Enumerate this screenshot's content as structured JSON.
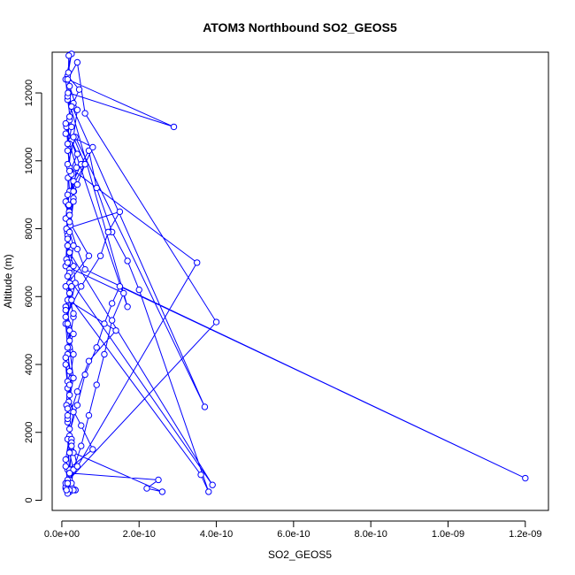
{
  "chart_data": {
    "type": "line",
    "title": "ATOM3 Northbound SO2_GEOS5",
    "xlabel": "SO2_GEOS5",
    "ylabel": "Altitude (m)",
    "xlim": [
      -2.5e-11,
      1.26e-09
    ],
    "ylim": [
      -300,
      13200
    ],
    "xticks": [
      0,
      2e-10,
      4e-10,
      6e-10,
      8e-10,
      1e-09,
      1.2e-09
    ],
    "xtick_labels": [
      "0.0e+00",
      "2.0e-10",
      "4.0e-10",
      "6.0e-10",
      "8.0e-10",
      "1.0e-09",
      "1.2e-09"
    ],
    "yticks": [
      0,
      2000,
      4000,
      6000,
      8000,
      10000,
      12000
    ],
    "ytick_labels": [
      "0",
      "2000",
      "4000",
      "6000",
      "8000",
      "10000",
      "12000"
    ],
    "grid": false,
    "marker": "open-circle",
    "line_color": "#0000ff",
    "series": [
      {
        "x": [
          1.5e-11,
          3e-11,
          5e-11,
          7e-11,
          9e-11,
          1.1e-10,
          1.3e-10,
          1.6e-10,
          1e-11,
          1.4e-11,
          1.6e-11,
          1.6e-11,
          2.5e-11,
          4e-11,
          2.2e-11,
          3.1e-11,
          1.9e-11,
          1.5e-11,
          1.2e-11,
          2e-11,
          1e-11,
          2e-11,
          1.5e-11,
          2.5e-11,
          1.8e-11,
          5e-11,
          8e-11,
          1.5e-11,
          2e-11,
          3.5e-11,
          1e-11,
          2e-11,
          3.5e-10,
          2e-11,
          1.2e-11,
          3e-11,
          4.5e-11,
          1.5e-11,
          2.5e-11,
          1e-11,
          1.5e-11,
          2.5e-11,
          1.5e-11,
          2.5e-11,
          3e-11,
          2e-11,
          1.5e-11,
          2e-11,
          2e-11,
          3e-11,
          2e-11,
          1e-11,
          1.5e-11,
          3e-11,
          2e-11,
          1e-11,
          2e-11,
          1.5e-11,
          2.5e-11,
          1.5e-11,
          1e-11,
          2e-11,
          1.5e-11,
          4e-11,
          6e-11,
          9e-11,
          1.1e-10,
          1.3e-10,
          1.5e-10,
          1.2e-09,
          6e-11,
          4e-11,
          2e-11,
          1e-11,
          3e-11,
          5e-11,
          7e-11,
          9e-11,
          1.3e-10,
          1.7e-10,
          2e-10,
          3.8e-10,
          3.6e-10,
          2.5e-11,
          3.5e-11,
          3e-11,
          1.5e-11,
          2.2e-11,
          1.8e-11,
          4e-11,
          6e-11,
          8e-11,
          1e-11,
          2e-11,
          2.5e-11,
          1.8e-11,
          2.9e-10,
          1.5e-11,
          4e-11,
          6e-11,
          4e-10,
          1e-11,
          2e-11,
          2.5e-10,
          2.2e-10,
          2.6e-10,
          3e-11,
          1.5e-11,
          4e-11,
          7e-11,
          1.4e-10,
          1.5e-11,
          2e-11,
          3e-11,
          1e-11,
          2e-11,
          1.5e-11,
          3.5e-11,
          3.7e-10,
          1.5e-11,
          1.7e-10,
          1e-11,
          2e-11,
          3.8e-11,
          3e-11,
          2e-11,
          1.5e-11,
          2e-11,
          2.5e-11,
          1e-11,
          3e-11,
          1e-11,
          1.5e-11,
          1.2e-11,
          2e-11,
          2e-11,
          3e-11,
          2.5e-11,
          3.5e-11,
          2e-11,
          3e-11,
          1.5e-11,
          4e-11,
          2.5e-11,
          1.5e-11,
          3e-11,
          2e-11,
          1e-11,
          5e-11,
          1e-10,
          1.2e-10,
          1.5e-10,
          1.2e-11,
          2e-11,
          3.9e-10,
          1.5e-11,
          2.5e-11,
          1e-11,
          1.5e-11,
          2e-11,
          2e-11,
          1.5e-11,
          2.5e-11,
          1e-11,
          1.5e-11,
          2e-11,
          1.5e-11,
          1.2e-11,
          2e-11,
          2.5e-11,
          1.5e-11,
          2e-11,
          3e-11,
          1.5e-11,
          2e-11,
          1.5e-11,
          2e-11,
          3e-11,
          2e-11,
          1.5e-11,
          2e-11,
          1.6e-11,
          1.7e-11,
          1.8e-11,
          2e-11,
          4e-11,
          3e-11,
          6e-11,
          1.5e-11,
          2e-11,
          7e-11,
          1e-11,
          3e-11
        ],
        "y": [
          400,
          900,
          1600,
          2500,
          3400,
          4300,
          5300,
          6100,
          6900,
          7900,
          8700,
          9500,
          10600,
          10200,
          9700,
          9100,
          8500,
          7800,
          7100,
          6400,
          5700,
          5000,
          4300,
          3600,
          2900,
          2200,
          1500,
          900,
          450,
          300,
          350,
          600,
          7000,
          9800,
          11000,
          11700,
          12100,
          12500,
          13150,
          12400,
          11800,
          11000,
          10300,
          9600,
          8900,
          8200,
          7500,
          6800,
          6100,
          5400,
          4700,
          4000,
          3300,
          2600,
          1900,
          1200,
          800,
          600,
          400,
          350,
          400,
          900,
          1800,
          2800,
          3700,
          4500,
          5200,
          5800,
          6300,
          650,
          6800,
          7400,
          8100,
          8800,
          9400,
          9900,
          10300,
          9200,
          7900,
          7050,
          6200,
          250,
          750,
          5900,
          6400,
          6900,
          7500,
          8100,
          8700,
          9300,
          9900,
          10400,
          10800,
          11200,
          11600,
          12000,
          11000,
          12400,
          12900,
          11400,
          5250,
          500,
          800,
          600,
          350,
          250,
          1400,
          2300,
          3200,
          4100,
          5000,
          5900,
          6700,
          7500,
          8300,
          9100,
          9900,
          10700,
          2750,
          11900,
          5700,
          11100,
          10500,
          9800,
          9100,
          8400,
          7700,
          7000,
          6300,
          5600,
          4900,
          4200,
          3500,
          2800,
          2100,
          1400,
          900,
          500,
          300,
          250,
          300,
          500,
          1000,
          1800,
          2700,
          3600,
          4500,
          5400,
          6300,
          7200,
          7900,
          8500,
          8000,
          7300,
          450,
          6600,
          5900,
          5200,
          4500,
          3800,
          3100,
          2400,
          1700,
          1000,
          500,
          300,
          200,
          300,
          800,
          1600,
          2500,
          3400,
          4300,
          5200,
          6100,
          7000,
          7900,
          8800,
          9700,
          10500,
          11300,
          12000,
          12600,
          13100,
          12200,
          11500,
          10700,
          9900,
          9000,
          8200,
          7200,
          6300,
          5500
        ]
      }
    ]
  }
}
